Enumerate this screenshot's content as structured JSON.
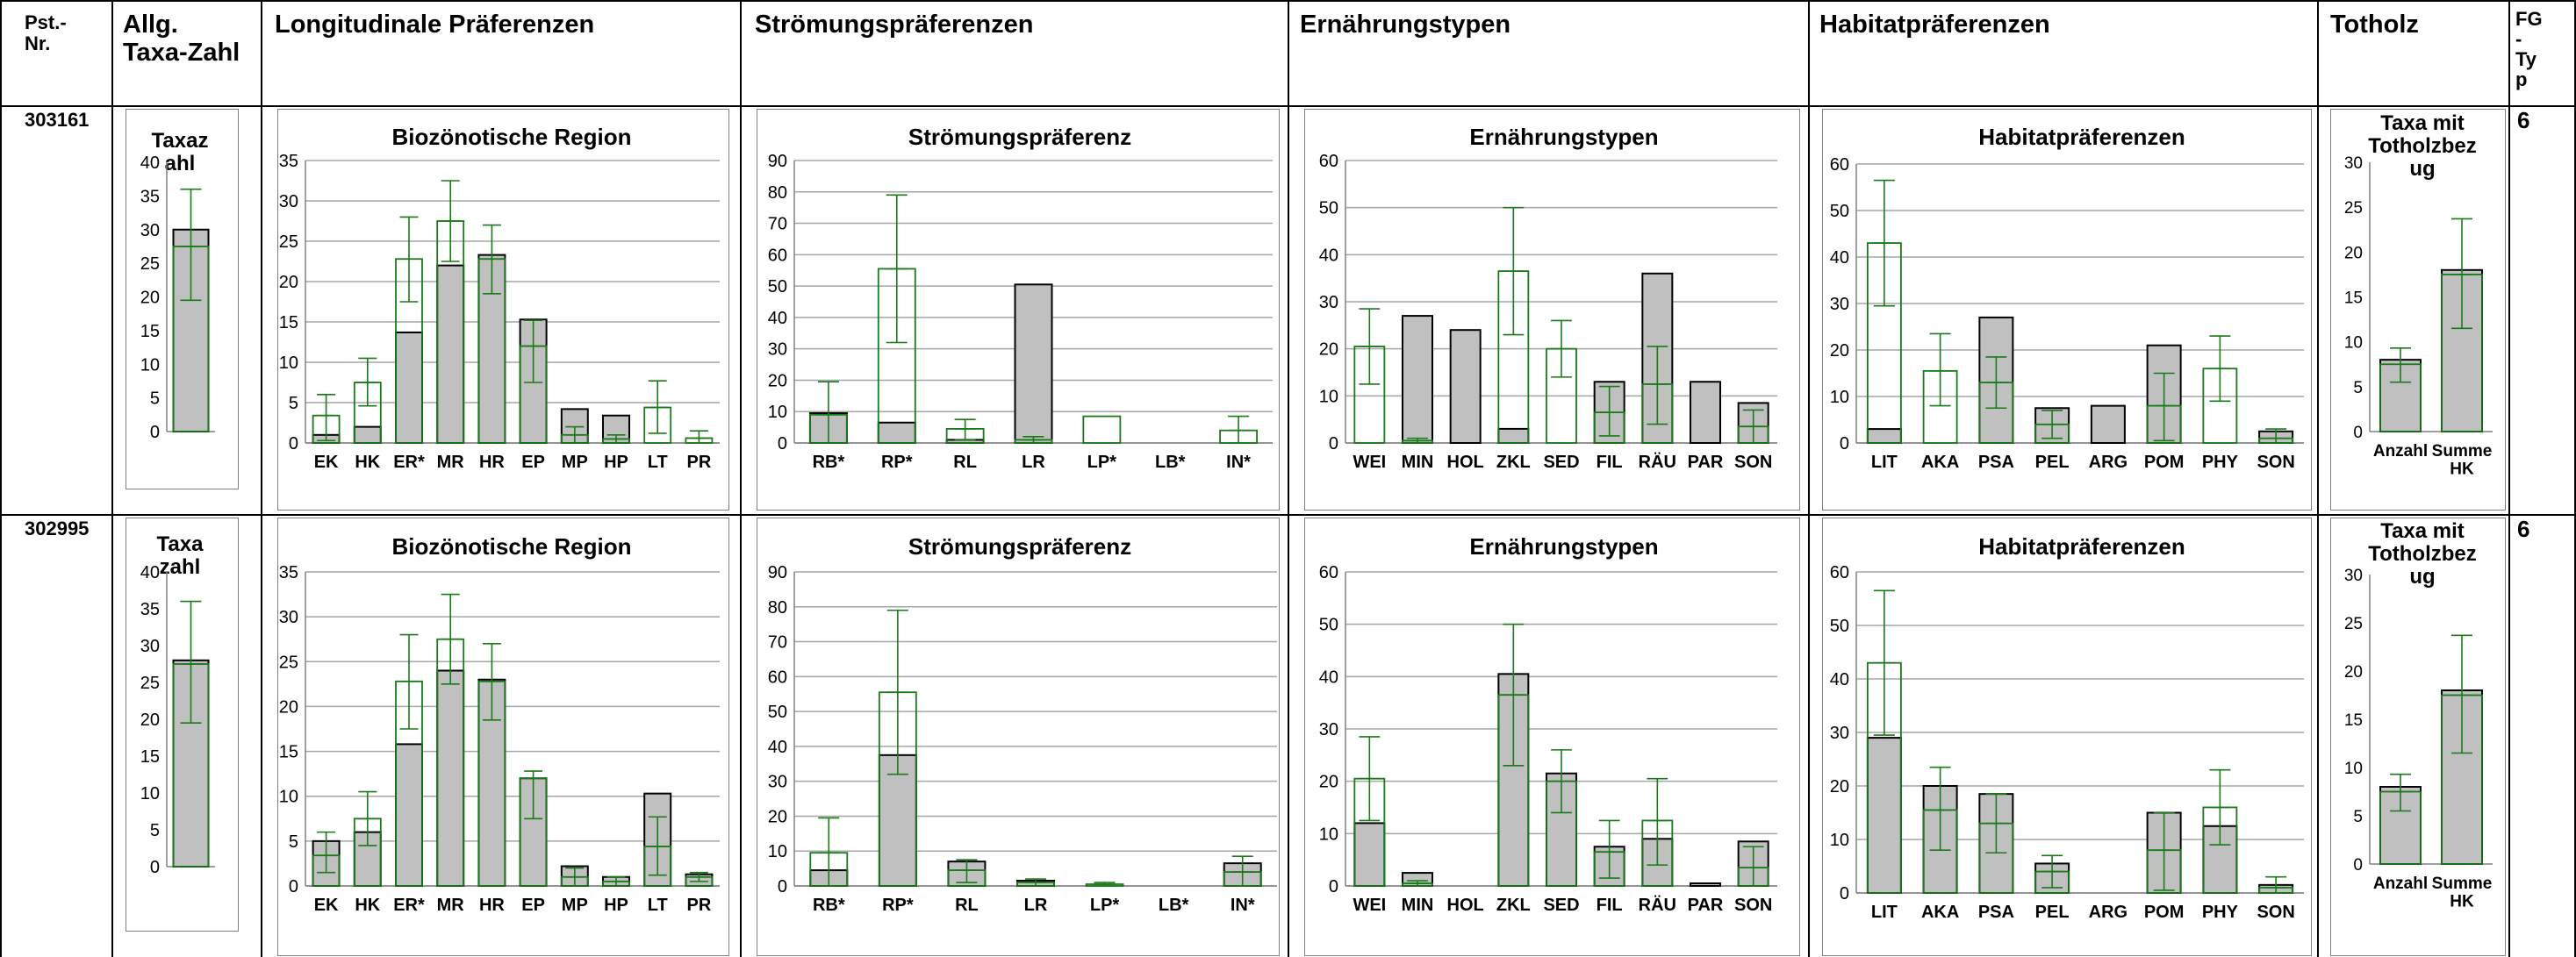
{
  "headers": {
    "pst_nr": "Pst.-\nNr.",
    "taxa": "Allg.\nTaxa-Zahl",
    "longitudinal": "Longitudinale Präferenzen",
    "stroemung": "Strömungspräferenzen",
    "ernaehrung": "Ernährungstypen",
    "habitat": "Habitatpräferenzen",
    "totholz": "Totholz",
    "fg_typ": "FG\n-\nTy\np"
  },
  "colors": {
    "bar_fill": "#c0c0c0",
    "bar_stroke": "#000000",
    "ref": "#1a7a1a",
    "grid": "#a6a6a6"
  },
  "rows": [
    {
      "id": "303161",
      "fg_typ": "6",
      "charts": {
        "taxa": {
          "title": "Taxaz\nahl",
          "type": "bar",
          "ylim": [
            0,
            40
          ],
          "yticks": [
            0,
            5,
            10,
            15,
            20,
            25,
            30,
            35,
            40
          ],
          "categories": [
            ""
          ],
          "values": [
            30
          ],
          "ref": [
            27.5
          ],
          "err_low": [
            19.5
          ],
          "err_high": [
            36
          ]
        },
        "region": {
          "title": "Biozönotische Region",
          "type": "bar",
          "ylim": [
            0,
            35
          ],
          "yticks": [
            0,
            5,
            10,
            15,
            20,
            25,
            30,
            35
          ],
          "categories": [
            "EK",
            "HK",
            "ER*",
            "MR",
            "HR",
            "EP",
            "MP",
            "HP",
            "LT",
            "PR"
          ],
          "values": [
            1,
            2,
            13.7,
            22,
            23.3,
            15.3,
            4.2,
            3.4,
            0,
            0
          ],
          "ref": [
            3.4,
            7.5,
            22.8,
            27.5,
            22.8,
            12,
            1,
            0.5,
            4.4,
            0.6
          ],
          "err_low": [
            0.3,
            4.6,
            17.5,
            22.5,
            18.5,
            7.5,
            0,
            0,
            1.2,
            0
          ],
          "err_high": [
            6,
            10.5,
            28,
            32.5,
            27,
            15.2,
            2,
            1,
            7.7,
            1.5
          ]
        },
        "stroemung": {
          "title": "Strömungspräferenz",
          "type": "bar",
          "ylim": [
            0,
            90
          ],
          "yticks": [
            0,
            10,
            20,
            30,
            40,
            50,
            60,
            70,
            80,
            90
          ],
          "categories": [
            "RB*",
            "RP*",
            "RL",
            "LR",
            "LP*",
            "LB*",
            "IN*"
          ],
          "values": [
            9.5,
            6.5,
            1,
            50.5,
            0,
            0,
            0
          ],
          "ref": [
            9,
            55.5,
            4.5,
            1,
            8.5,
            0,
            4
          ],
          "err_low": [
            0,
            32,
            1,
            0,
            0,
            0,
            0
          ],
          "err_high": [
            19.5,
            79,
            7.5,
            2,
            0,
            0,
            8.5
          ]
        },
        "ernaehrung": {
          "title": "Ernährungstypen",
          "type": "bar",
          "ylim": [
            0,
            60
          ],
          "yticks": [
            0,
            10,
            20,
            30,
            40,
            50,
            60
          ],
          "categories": [
            "WEI",
            "MIN",
            "HOL",
            "ZKL",
            "SED",
            "FIL",
            "RÄU",
            "PAR",
            "SON"
          ],
          "values": [
            0,
            27,
            24,
            3,
            0,
            13,
            36,
            13,
            8.5
          ],
          "ref": [
            20.5,
            0.5,
            0,
            36.5,
            20,
            6.5,
            12.5,
            0,
            3.5
          ],
          "err_low": [
            12.5,
            0,
            0,
            23,
            14,
            1.5,
            4,
            0,
            0
          ],
          "err_high": [
            28.5,
            1,
            0,
            50,
            26,
            12,
            20.5,
            0,
            7
          ]
        },
        "habitat": {
          "title": "Habitatpräferenzen",
          "type": "bar",
          "ylim": [
            0,
            60
          ],
          "yticks": [
            0,
            10,
            20,
            30,
            40,
            50,
            60
          ],
          "categories": [
            "LIT",
            "AKA",
            "PSA",
            "PEL",
            "ARG",
            "POM",
            "PHY",
            "SON"
          ],
          "values": [
            3,
            0,
            27,
            7.5,
            8,
            21,
            0,
            2.5
          ],
          "ref": [
            43,
            15.5,
            13,
            4,
            0,
            8,
            16,
            1
          ],
          "err_low": [
            29.5,
            8,
            7.5,
            1,
            0,
            0.5,
            9,
            0
          ],
          "err_high": [
            56.5,
            23.5,
            18.5,
            7,
            0,
            15,
            23,
            3
          ]
        },
        "totholz": {
          "title": "Taxa mit\nTotholzbez\nug",
          "type": "bar",
          "ylim": [
            0,
            30
          ],
          "yticks": [
            0,
            5,
            10,
            15,
            20,
            25,
            30
          ],
          "categories": [
            "Anzahl",
            "Summe\nHK"
          ],
          "values": [
            8,
            18
          ],
          "ref": [
            7.5,
            17.5
          ],
          "err_low": [
            5.5,
            11.5
          ],
          "err_high": [
            9.3,
            23.7
          ]
        }
      }
    },
    {
      "id": "302995",
      "fg_typ": "6",
      "charts": {
        "taxa": {
          "title": "Taxa\nzahl",
          "type": "bar",
          "ylim": [
            0,
            40
          ],
          "yticks": [
            0,
            5,
            10,
            15,
            20,
            25,
            30,
            35,
            40
          ],
          "categories": [
            ""
          ],
          "values": [
            28
          ],
          "ref": [
            27.5
          ],
          "err_low": [
            19.5
          ],
          "err_high": [
            36
          ]
        },
        "region": {
          "title": "Biozönotische Region",
          "type": "bar",
          "ylim": [
            0,
            35
          ],
          "yticks": [
            0,
            5,
            10,
            15,
            20,
            25,
            30,
            35
          ],
          "categories": [
            "EK",
            "HK",
            "ER*",
            "MR",
            "HR",
            "EP",
            "MP",
            "HP",
            "LT",
            "PR"
          ],
          "values": [
            5,
            6,
            15.8,
            24,
            23,
            12,
            2.2,
            1,
            10.3,
            1.3
          ],
          "ref": [
            3.4,
            7.5,
            22.8,
            27.5,
            22.8,
            12,
            1,
            0.5,
            4.4,
            1
          ],
          "err_low": [
            1.5,
            4.5,
            17.5,
            22.5,
            18.5,
            7.5,
            0,
            0,
            1.2,
            0.5
          ],
          "err_high": [
            6,
            10.5,
            28,
            32.5,
            27,
            12.8,
            2,
            1,
            7.7,
            1.5
          ]
        },
        "stroemung": {
          "title": "Strömungspräferenz",
          "type": "bar",
          "ylim": [
            0,
            90
          ],
          "yticks": [
            0,
            10,
            20,
            30,
            40,
            50,
            60,
            70,
            80,
            90
          ],
          "categories": [
            "RB*",
            "RP*",
            "RL",
            "LR",
            "LP*",
            "LB*",
            "IN*"
          ],
          "values": [
            4.5,
            37.5,
            7,
            1.5,
            0,
            0,
            6.5
          ],
          "ref": [
            9.5,
            55.5,
            4.5,
            1,
            0.5,
            0,
            4
          ],
          "err_low": [
            0,
            32,
            1,
            0,
            0,
            0,
            0
          ],
          "err_high": [
            19.5,
            79,
            7.5,
            2,
            1,
            0,
            8.5
          ]
        },
        "ernaehrung": {
          "title": "Ernährungstypen",
          "type": "bar",
          "ylim": [
            0,
            60
          ],
          "yticks": [
            0,
            10,
            20,
            30,
            40,
            50,
            60
          ],
          "categories": [
            "WEI",
            "MIN",
            "HOL",
            "ZKL",
            "SED",
            "FIL",
            "RÄU",
            "PAR",
            "SON"
          ],
          "values": [
            12,
            2.5,
            0,
            40.5,
            21.5,
            7.5,
            9,
            0.5,
            8.5
          ],
          "ref": [
            20.5,
            0.5,
            0,
            36.5,
            20,
            6.5,
            12.5,
            0,
            3.5
          ],
          "err_low": [
            12.5,
            0,
            0,
            23,
            14,
            1.5,
            4,
            0,
            0
          ],
          "err_high": [
            28.5,
            1,
            0,
            50,
            26,
            12.5,
            20.5,
            0,
            7.5
          ]
        },
        "habitat": {
          "title": "Habitatpräferenzen",
          "type": "bar",
          "ylim": [
            0,
            60
          ],
          "yticks": [
            0,
            10,
            20,
            30,
            40,
            50,
            60
          ],
          "categories": [
            "LIT",
            "AKA",
            "PSA",
            "PEL",
            "ARG",
            "POM",
            "PHY",
            "SON"
          ],
          "values": [
            29,
            20,
            18.5,
            5.5,
            0,
            15,
            12.5,
            1.5
          ],
          "ref": [
            43,
            15.5,
            13,
            4,
            0,
            8,
            16,
            1
          ],
          "err_low": [
            29.5,
            8,
            7.5,
            1,
            0,
            0.5,
            9,
            0
          ],
          "err_high": [
            56.5,
            23.5,
            18.5,
            7,
            0,
            15,
            23,
            3
          ]
        },
        "totholz": {
          "title": "Taxa mit\nTotholzbez\nug",
          "type": "bar",
          "ylim": [
            0,
            30
          ],
          "yticks": [
            0,
            5,
            10,
            15,
            20,
            25,
            30
          ],
          "categories": [
            "Anzahl",
            "Summe\nHK"
          ],
          "values": [
            8,
            18
          ],
          "ref": [
            7.5,
            17.5
          ],
          "err_low": [
            5.5,
            11.5
          ],
          "err_high": [
            9.3,
            23.7
          ]
        }
      }
    }
  ]
}
